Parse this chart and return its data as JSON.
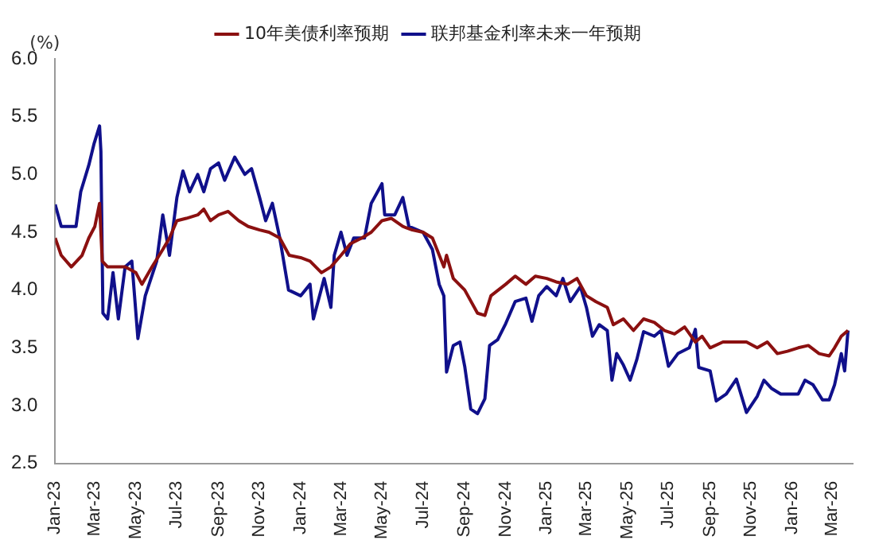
{
  "chart_data": {
    "type": "line",
    "ylabel": "(%)",
    "legend": "top",
    "grid": false,
    "marker": "none",
    "line_style": "solid",
    "xlim": [
      "2023-01-01",
      "2026-04-01"
    ],
    "xticks": [
      {
        "value": "2023-01-01",
        "label": "Jan-23"
      },
      {
        "value": "2023-03-01",
        "label": "Mar-23"
      },
      {
        "value": "2023-05-01",
        "label": "May-23"
      },
      {
        "value": "2023-07-01",
        "label": "Jul-23"
      },
      {
        "value": "2023-09-01",
        "label": "Sep-23"
      },
      {
        "value": "2023-11-01",
        "label": "Nov-23"
      },
      {
        "value": "2024-01-01",
        "label": "Jan-24"
      },
      {
        "value": "2024-03-01",
        "label": "Mar-24"
      },
      {
        "value": "2024-05-01",
        "label": "May-24"
      },
      {
        "value": "2024-07-01",
        "label": "Jul-24"
      },
      {
        "value": "2024-09-01",
        "label": "Sep-24"
      },
      {
        "value": "2024-11-01",
        "label": "Nov-24"
      },
      {
        "value": "2025-01-01",
        "label": "Jan-25"
      },
      {
        "value": "2025-03-01",
        "label": "Mar-25"
      },
      {
        "value": "2025-05-01",
        "label": "May-25"
      },
      {
        "value": "2025-07-01",
        "label": "Jul-25"
      },
      {
        "value": "2025-09-01",
        "label": "Sep-25"
      },
      {
        "value": "2025-11-01",
        "label": "Nov-25"
      },
      {
        "value": "2026-01-01",
        "label": "Jan-26"
      },
      {
        "value": "2026-03-01",
        "label": "Mar-26"
      }
    ],
    "ylim": [
      2.5,
      6.0
    ],
    "yticks": [
      {
        "value": 2.5,
        "label": "2.5"
      },
      {
        "value": 3,
        "label": "3.0"
      },
      {
        "value": 3.5,
        "label": "3.5"
      },
      {
        "value": 4,
        "label": "4.0"
      },
      {
        "value": 4.5,
        "label": "4.5"
      },
      {
        "value": 5,
        "label": "5.0"
      },
      {
        "value": 5.5,
        "label": "5.5"
      },
      {
        "value": 6,
        "label": "6.0"
      }
    ],
    "series": [
      {
        "name": "10年美债利率预期",
        "color": "#8b1010",
        "x": [
          "2023-01-01",
          "2023-01-10",
          "2023-01-25",
          "2023-02-10",
          "2023-02-20",
          "2023-03-01",
          "2023-03-08",
          "2023-03-12",
          "2023-03-20",
          "2023-04-01",
          "2023-04-15",
          "2023-05-01",
          "2023-05-10",
          "2023-05-25",
          "2023-06-10",
          "2023-06-20",
          "2023-07-01",
          "2023-07-15",
          "2023-08-01",
          "2023-08-10",
          "2023-08-20",
          "2023-09-01",
          "2023-09-15",
          "2023-10-01",
          "2023-10-15",
          "2023-11-01",
          "2023-11-15",
          "2023-12-01",
          "2023-12-15",
          "2024-01-01",
          "2024-01-15",
          "2024-02-01",
          "2024-02-15",
          "2024-03-01",
          "2024-03-15",
          "2024-04-01",
          "2024-04-15",
          "2024-05-01",
          "2024-05-15",
          "2024-06-01",
          "2024-06-15",
          "2024-07-01",
          "2024-07-15",
          "2024-08-01",
          "2024-08-05",
          "2024-08-15",
          "2024-09-01",
          "2024-09-20",
          "2024-10-01",
          "2024-10-10",
          "2024-11-01",
          "2024-11-15",
          "2024-12-01",
          "2024-12-15",
          "2025-01-01",
          "2025-01-15",
          "2025-02-01",
          "2025-02-15",
          "2025-03-01",
          "2025-03-15",
          "2025-04-01",
          "2025-04-10",
          "2025-04-25",
          "2025-05-10",
          "2025-05-25",
          "2025-06-10",
          "2025-06-25",
          "2025-07-10",
          "2025-07-25",
          "2025-08-10",
          "2025-08-20",
          "2025-09-01",
          "2025-09-20",
          "2025-10-10",
          "2025-10-25",
          "2025-11-10",
          "2025-11-25",
          "2025-12-10",
          "2025-12-25",
          "2026-01-10",
          "2026-01-25",
          "2026-02-10",
          "2026-02-25",
          "2026-03-05",
          "2026-03-15",
          "2026-03-25"
        ],
        "values": [
          4.45,
          4.3,
          4.2,
          4.3,
          4.45,
          4.55,
          4.75,
          4.25,
          4.2,
          4.2,
          4.2,
          4.15,
          4.05,
          4.2,
          4.35,
          4.45,
          4.6,
          4.62,
          4.65,
          4.7,
          4.6,
          4.65,
          4.68,
          4.6,
          4.55,
          4.52,
          4.5,
          4.45,
          4.3,
          4.28,
          4.25,
          4.15,
          4.2,
          4.3,
          4.4,
          4.45,
          4.5,
          4.6,
          4.62,
          4.55,
          4.52,
          4.5,
          4.45,
          4.2,
          4.3,
          4.1,
          4.0,
          3.8,
          3.78,
          3.95,
          4.05,
          4.12,
          4.05,
          4.12,
          4.1,
          4.07,
          4.05,
          4.1,
          3.95,
          3.9,
          3.85,
          3.7,
          3.75,
          3.65,
          3.75,
          3.72,
          3.65,
          3.62,
          3.68,
          3.55,
          3.6,
          3.5,
          3.55,
          3.55,
          3.55,
          3.5,
          3.55,
          3.45,
          3.47,
          3.5,
          3.52,
          3.45,
          3.43,
          3.5,
          3.6,
          3.65
        ]
      },
      {
        "name": "联邦基金利率未来一年预期",
        "color": "#10108b",
        "x": [
          "2023-01-01",
          "2023-01-10",
          "2023-02-01",
          "2023-02-08",
          "2023-02-20",
          "2023-02-28",
          "2023-03-08",
          "2023-03-10",
          "2023-03-13",
          "2023-03-20",
          "2023-03-28",
          "2023-04-05",
          "2023-04-15",
          "2023-04-25",
          "2023-05-04",
          "2023-05-15",
          "2023-06-01",
          "2023-06-10",
          "2023-06-20",
          "2023-07-01",
          "2023-07-10",
          "2023-07-20",
          "2023-08-01",
          "2023-08-10",
          "2023-08-20",
          "2023-09-01",
          "2023-09-10",
          "2023-09-25",
          "2023-10-10",
          "2023-10-20",
          "2023-11-01",
          "2023-11-10",
          "2023-11-20",
          "2023-12-01",
          "2023-12-14",
          "2024-01-01",
          "2024-01-15",
          "2024-01-20",
          "2024-02-05",
          "2024-02-15",
          "2024-02-20",
          "2024-03-01",
          "2024-03-10",
          "2024-03-20",
          "2024-04-05",
          "2024-04-15",
          "2024-05-01",
          "2024-05-05",
          "2024-05-20",
          "2024-06-01",
          "2024-06-10",
          "2024-07-01",
          "2024-07-15",
          "2024-07-25",
          "2024-08-01",
          "2024-08-05",
          "2024-08-15",
          "2024-08-25",
          "2024-09-01",
          "2024-09-10",
          "2024-09-20",
          "2024-10-01",
          "2024-10-08",
          "2024-10-20",
          "2024-11-01",
          "2024-11-15",
          "2024-12-01",
          "2024-12-10",
          "2024-12-20",
          "2025-01-01",
          "2025-01-15",
          "2025-01-25",
          "2025-02-05",
          "2025-02-20",
          "2025-03-01",
          "2025-03-10",
          "2025-03-20",
          "2025-04-01",
          "2025-04-08",
          "2025-04-15",
          "2025-04-25",
          "2025-05-05",
          "2025-05-15",
          "2025-05-25",
          "2025-06-10",
          "2025-06-20",
          "2025-07-01",
          "2025-07-15",
          "2025-08-01",
          "2025-08-10",
          "2025-08-15",
          "2025-09-01",
          "2025-09-10",
          "2025-09-25",
          "2025-10-10",
          "2025-10-25",
          "2025-11-10",
          "2025-11-20",
          "2025-12-01",
          "2025-12-15",
          "2026-01-01",
          "2026-01-10",
          "2026-01-20",
          "2026-02-01",
          "2026-02-15",
          "2026-02-25",
          "2026-03-05",
          "2026-03-15",
          "2026-03-20",
          "2026-03-25"
        ],
        "values": [
          4.74,
          4.55,
          4.55,
          4.85,
          5.08,
          5.27,
          5.42,
          5.2,
          3.8,
          3.75,
          4.15,
          3.75,
          4.2,
          4.25,
          3.58,
          3.95,
          4.25,
          4.65,
          4.3,
          4.8,
          5.03,
          4.85,
          5.0,
          4.85,
          5.05,
          5.1,
          4.95,
          5.15,
          5.0,
          5.05,
          4.8,
          4.6,
          4.75,
          4.45,
          4.0,
          3.95,
          4.05,
          3.75,
          4.1,
          3.85,
          4.3,
          4.5,
          4.3,
          4.45,
          4.45,
          4.75,
          4.92,
          4.65,
          4.65,
          4.8,
          4.55,
          4.5,
          4.35,
          4.05,
          3.95,
          3.29,
          3.52,
          3.55,
          3.34,
          2.97,
          2.93,
          3.06,
          3.52,
          3.57,
          3.71,
          3.9,
          3.93,
          3.73,
          3.95,
          4.03,
          3.95,
          4.1,
          3.9,
          4.03,
          3.85,
          3.6,
          3.7,
          3.65,
          3.22,
          3.45,
          3.35,
          3.22,
          3.4,
          3.64,
          3.6,
          3.65,
          3.34,
          3.45,
          3.5,
          3.66,
          3.33,
          3.3,
          3.04,
          3.1,
          3.23,
          2.94,
          3.08,
          3.22,
          3.15,
          3.1,
          3.1,
          3.1,
          3.22,
          3.18,
          3.05,
          3.05,
          3.18,
          3.45,
          3.3,
          3.65
        ]
      }
    ]
  }
}
